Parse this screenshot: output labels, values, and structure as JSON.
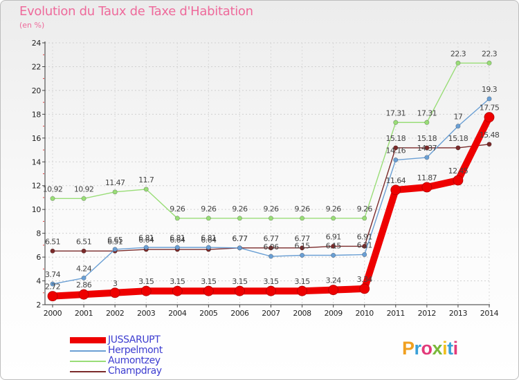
{
  "chart_data": {
    "type": "line",
    "title": "Evolution du Taux de Taxe d'Habitation",
    "unit_label": "(en %)",
    "x": [
      2000,
      2001,
      2002,
      2003,
      2004,
      2005,
      2006,
      2007,
      2008,
      2009,
      2010,
      2011,
      2012,
      2013,
      2014
    ],
    "ylim": [
      2,
      24
    ],
    "yticks": [
      2,
      4,
      6,
      8,
      10,
      12,
      14,
      16,
      18,
      20,
      22,
      24
    ],
    "grid": true,
    "legend_position": "bottom-left",
    "series": [
      {
        "name": "JUSSARUPT",
        "color": "#ee0000",
        "values": [
          2.72,
          2.86,
          3,
          3.15,
          3.15,
          3.15,
          3.15,
          3.15,
          3.15,
          3.24,
          3.34,
          11.64,
          11.87,
          12.45,
          17.75
        ],
        "labels": [
          "2.72",
          "2.86",
          "3",
          "3.15",
          "3.15",
          "3.15",
          "3.15",
          "3.15",
          "3.15",
          "3.24",
          "3.34",
          "11.64",
          "11.87",
          "12.45",
          "17.75"
        ]
      },
      {
        "name": "Herpelmont",
        "color": "#6a9fd4",
        "values": [
          3.74,
          4.24,
          6.65,
          6.81,
          6.81,
          6.81,
          6.77,
          6.06,
          6.15,
          6.15,
          6.21,
          14.16,
          14.37,
          17,
          19.3
        ],
        "labels": [
          "3.74",
          "4.24",
          "6.65",
          "6.81",
          "6.81",
          "6.81",
          "6.77",
          "6.06",
          "6.15",
          "6.15",
          "6.21",
          "14.16",
          "14.37",
          "17",
          "19.3"
        ]
      },
      {
        "name": "Aumontzey",
        "color": "#99dd77",
        "values": [
          10.92,
          10.92,
          11.47,
          11.7,
          9.26,
          9.26,
          9.26,
          9.26,
          9.26,
          9.26,
          9.26,
          17.31,
          17.31,
          22.3,
          22.3
        ],
        "labels": [
          "10.92",
          "10.92",
          "11.47",
          "11.7",
          "9.26",
          "9.26",
          "9.26",
          "9.26",
          "9.26",
          "9.26",
          "9.26",
          "17.31",
          "17.31",
          "22.3",
          "22.3"
        ]
      },
      {
        "name": "Champdray",
        "color": "#7a2a2a",
        "values": [
          6.51,
          6.51,
          6.51,
          6.64,
          6.64,
          6.64,
          6.77,
          6.77,
          6.77,
          6.91,
          6.91,
          15.18,
          15.18,
          15.18,
          15.48
        ],
        "labels": [
          "6.51",
          "6.51",
          "6.51",
          "6.64",
          "6.64",
          "6.64",
          "6.77",
          "6.77",
          "6.77",
          "6.91",
          "6.91",
          "15.18",
          "15.18",
          "15.18",
          "15.48"
        ]
      }
    ]
  },
  "logo": {
    "letters": [
      "P",
      "r",
      "o",
      "x",
      "i",
      "t",
      "i"
    ],
    "colors": [
      "#f0a020",
      "#3aa0d8",
      "#e23a7a",
      "#7ab83a",
      "#f0c020",
      "#3aa0d8",
      "#e23a7a"
    ]
  }
}
